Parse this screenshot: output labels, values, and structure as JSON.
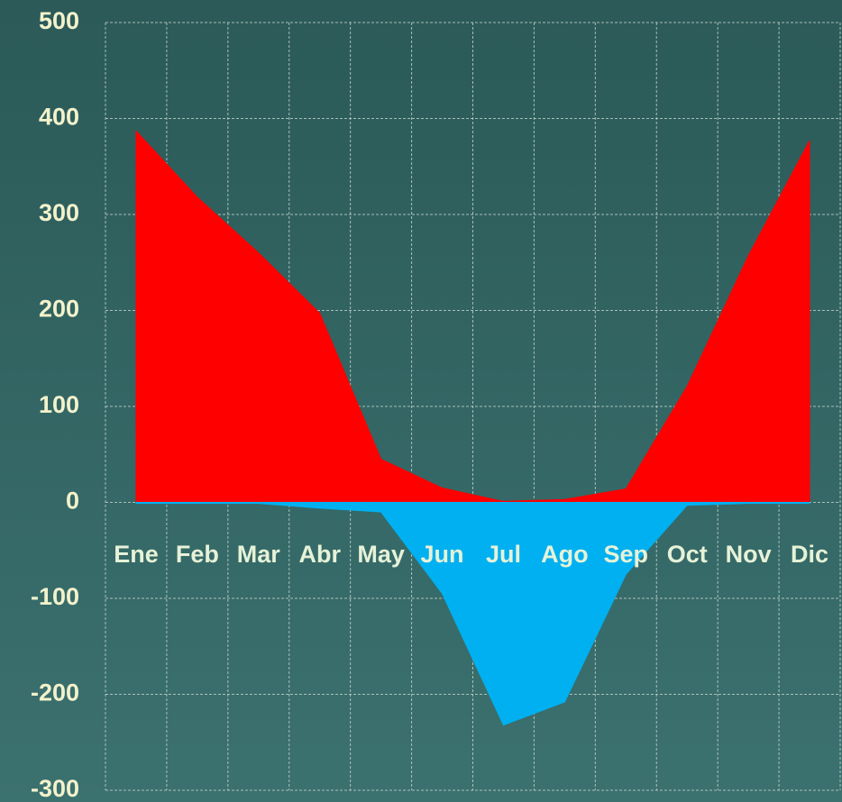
{
  "chart_data": {
    "type": "area",
    "categories": [
      "Ene",
      "Feb",
      "Mar",
      "Abr",
      "May",
      "Jun",
      "Jul",
      "Ago",
      "Sep",
      "Oct",
      "Nov",
      "Dic"
    ],
    "series": [
      {
        "color": "#ff0000",
        "values": [
          387,
          318,
          260,
          197,
          45,
          15,
          1,
          3,
          14,
          121,
          257,
          377
        ]
      },
      {
        "color": "#00b0f0",
        "values": [
          -1,
          -1,
          -1,
          -6,
          -10,
          -95,
          -232,
          -208,
          -75,
          -3,
          -1,
          -1
        ]
      }
    ],
    "ylim": [
      -300,
      500
    ],
    "yticks": [
      -300,
      -200,
      -100,
      0,
      100,
      200,
      300,
      400,
      500
    ],
    "grid": true
  }
}
